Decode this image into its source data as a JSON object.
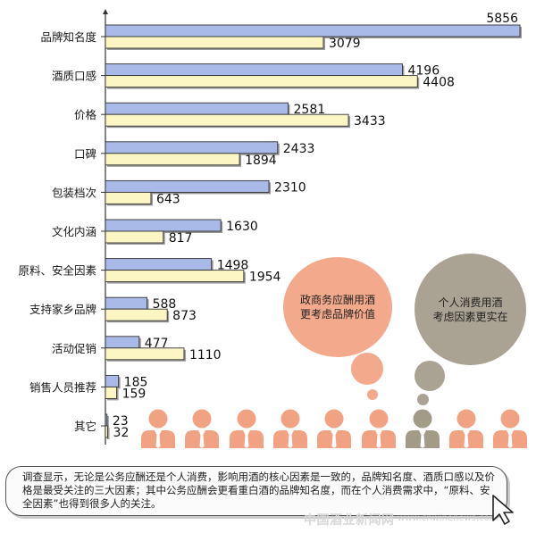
{
  "chart_data": {
    "type": "bar",
    "orientation": "horizontal",
    "categories": [
      "品牌知名度",
      "酒质口感",
      "价格",
      "口碑",
      "包装档次",
      "文化内涵",
      "原料、安全因素",
      "支持家乡品牌",
      "活动促销",
      "销售人员推荐",
      "其它"
    ],
    "series": [
      {
        "values": [
          5856,
          4196,
          2581,
          2433,
          2310,
          1630,
          1498,
          588,
          477,
          185,
          23
        ],
        "color": "#a9b9e8"
      },
      {
        "values": [
          3079,
          4408,
          3433,
          1894,
          643,
          817,
          1954,
          873,
          1110,
          159,
          32
        ],
        "color": "#fbf6c4"
      }
    ],
    "xlim": [
      0,
      5856
    ]
  },
  "bubbles": {
    "business": {
      "text": "政商务应酬用酒\n更考虑品牌价值",
      "color": "#f3a98c"
    },
    "personal": {
      "text": "个人消费用酒\n考虑因素更实在",
      "color": "#aaa292"
    }
  },
  "people": {
    "count": 9,
    "business_color": "#f0a283",
    "personal_color": "#a29b88",
    "personal_index": 6
  },
  "note": {
    "text": "调查显示，无论是公务应酬还是个人消费，影响用酒的核心因素是一致的，品牌知名度、酒质口感以及价格是最受关注的三大因素；其中公务应酬会更看重白酒的品牌知名度，而在个人消费需求中，“原料、安全因素”也得到很多人的关注。"
  },
  "watermark": {
    "text": "中国酒业新闻网",
    "url": "www.cnwinenews.com"
  }
}
